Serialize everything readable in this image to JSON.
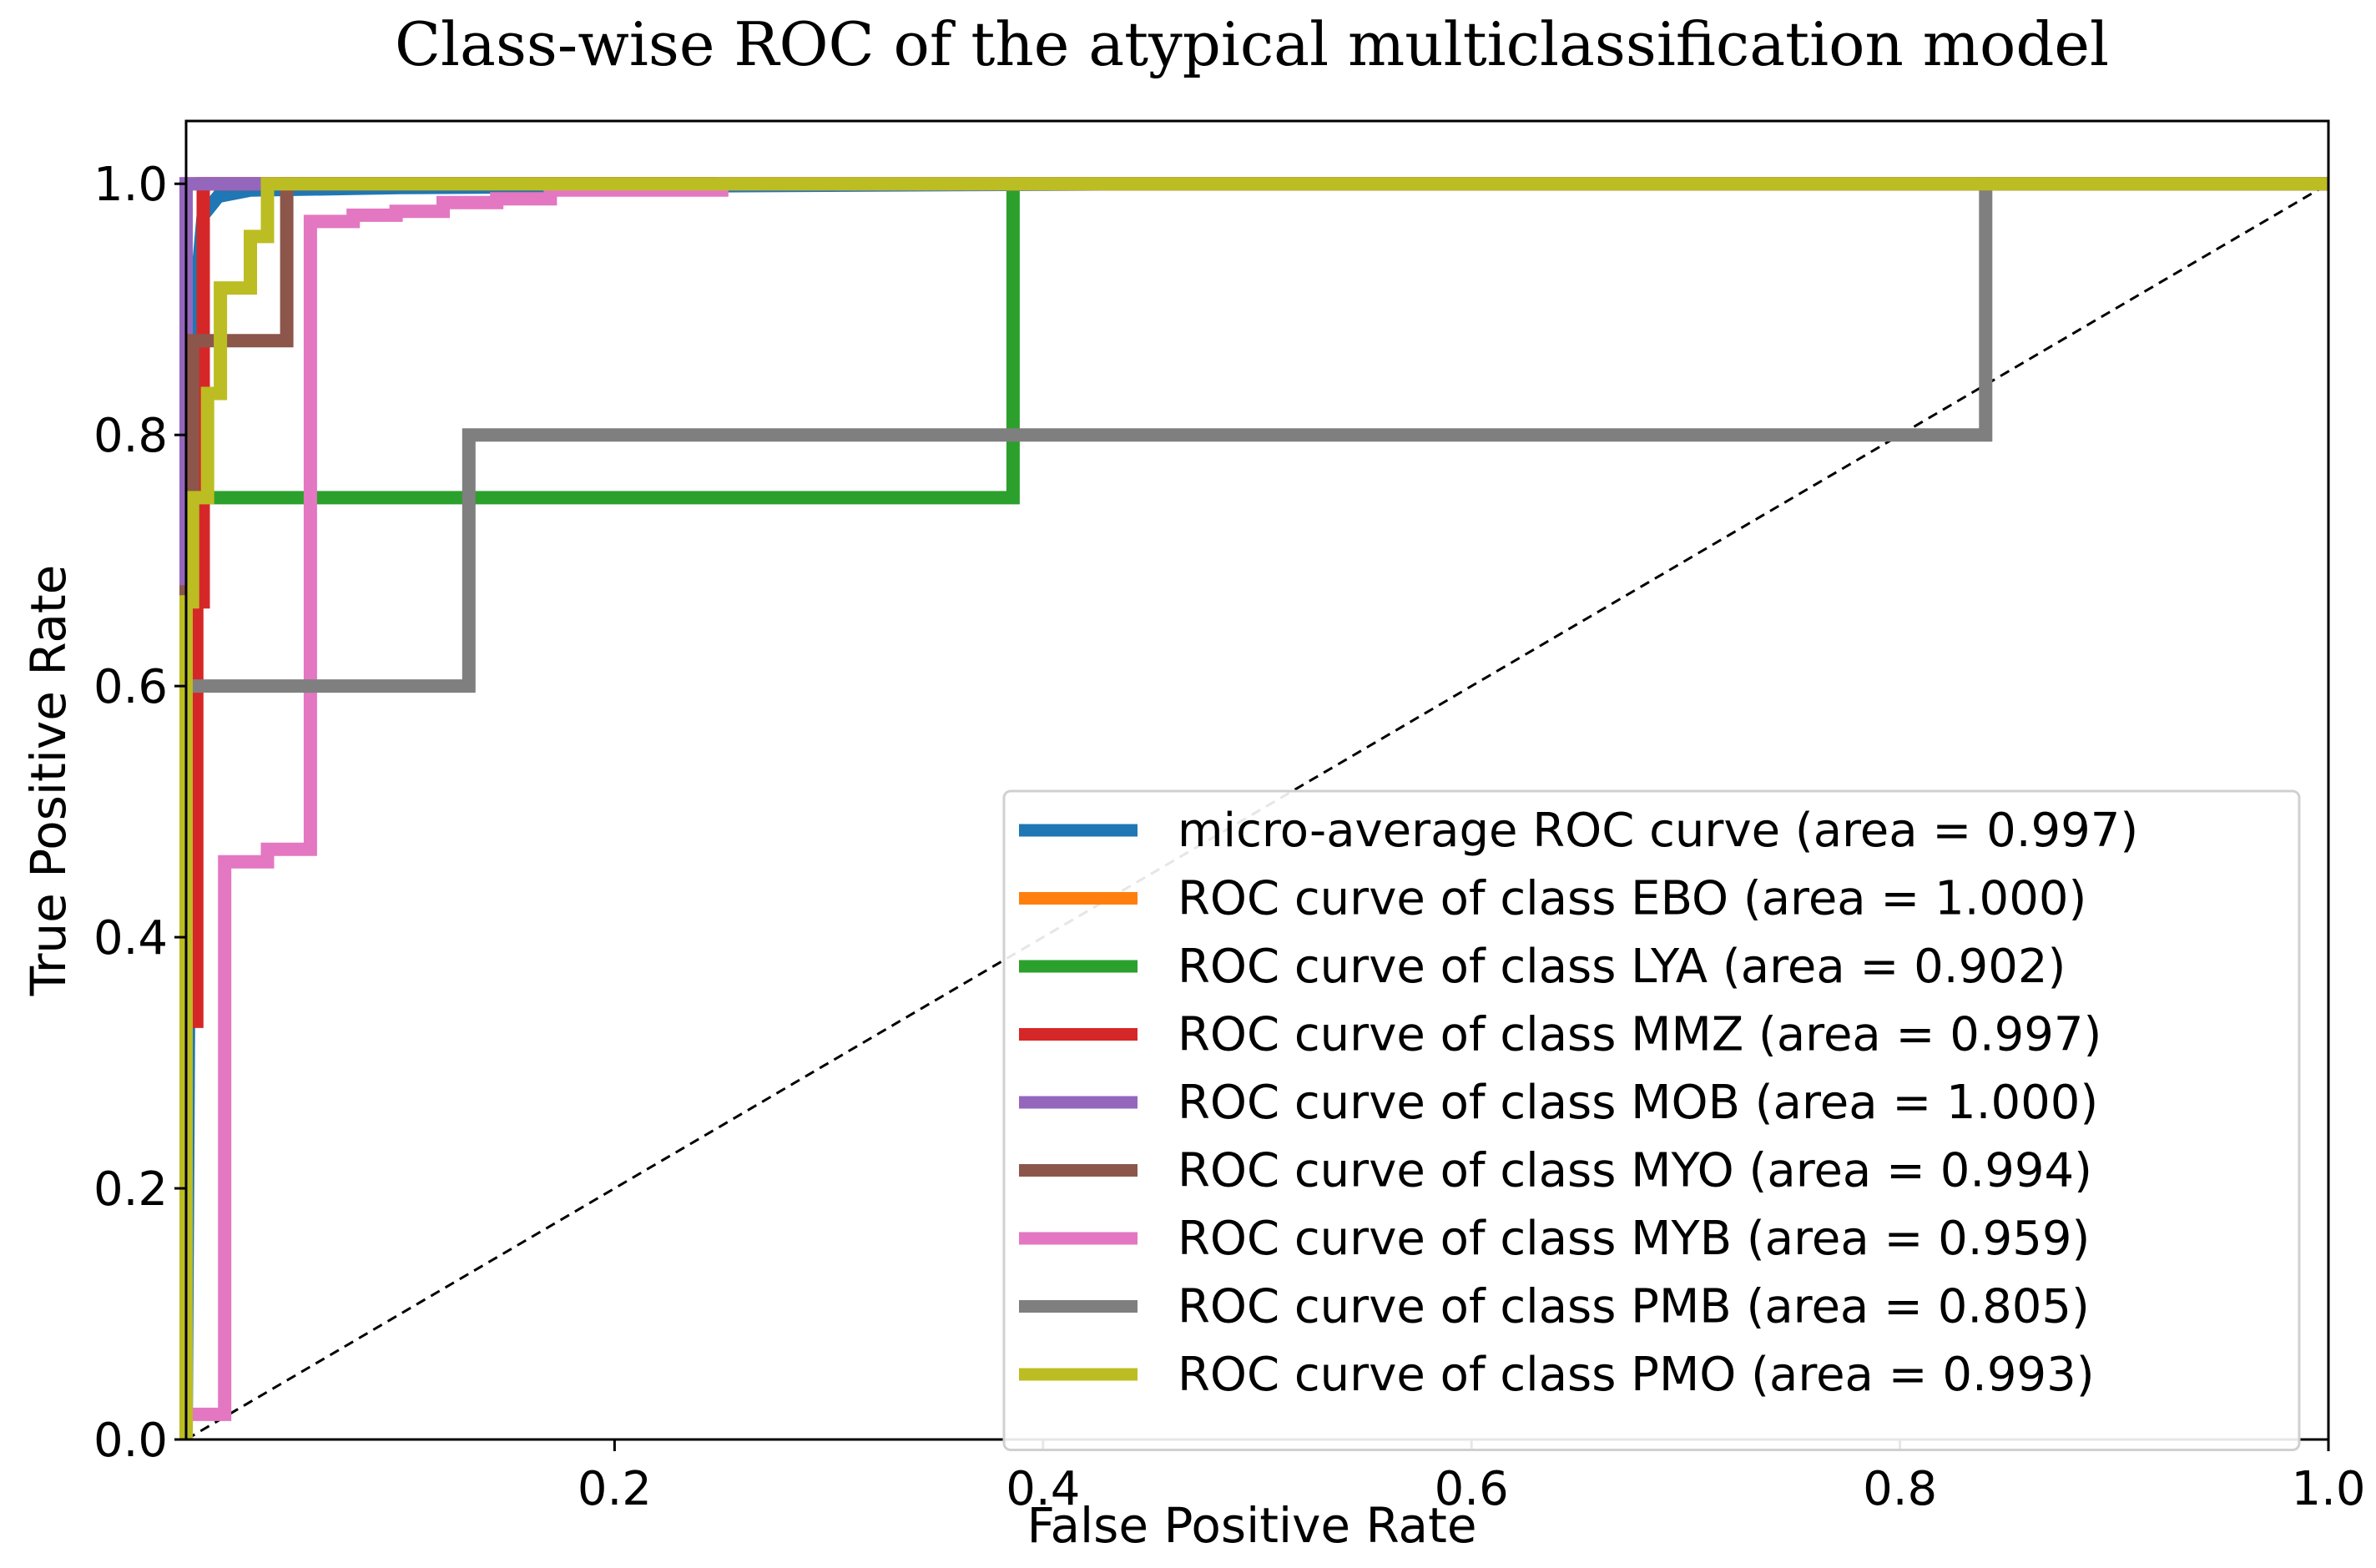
{
  "chart_data": {
    "type": "line",
    "title": "Class-wise ROC of the atypical multiclassification model",
    "xlabel": "False Positive Rate",
    "ylabel": "True Positive Rate",
    "xlim": [
      0.0,
      1.0
    ],
    "ylim": [
      0.0,
      1.05
    ],
    "x_ticks": [
      "0.2",
      "0.4",
      "0.6",
      "0.8",
      "1.0"
    ],
    "y_ticks": [
      "0.0",
      "0.2",
      "0.4",
      "0.6",
      "0.8",
      "1.0"
    ],
    "grid": false,
    "legend_position": "lower-right",
    "diagonal": {
      "x": [
        0,
        1
      ],
      "y": [
        0,
        1
      ],
      "color": "#000000",
      "style": "dashed"
    },
    "series": [
      {
        "name": "micro-average ROC curve (area = 0.997)",
        "color": "#1f77b4",
        "x": [
          0,
          0.003,
          0.008,
          0.015,
          0.03,
          0.1,
          0.2,
          0.45,
          1.0
        ],
        "y": [
          0,
          0.88,
          0.975,
          0.99,
          0.995,
          0.997,
          0.998,
          1.0,
          1.0
        ]
      },
      {
        "name": "ROC curve of class EBO (area = 1.000)",
        "color": "#ff7f0e",
        "x": [
          0,
          0,
          1.0
        ],
        "y": [
          0,
          1.0,
          1.0
        ]
      },
      {
        "name": "ROC curve of class LYA (area = 0.902)",
        "color": "#2ca02c",
        "x": [
          0,
          0,
          0.386,
          0.386,
          1.0
        ],
        "y": [
          0,
          0.75,
          0.75,
          1.0,
          1.0
        ]
      },
      {
        "name": "ROC curve of class MMZ (area = 0.997)",
        "color": "#d62728",
        "x": [
          0,
          0,
          0.005,
          0.005,
          0.008,
          0.008,
          1.0
        ],
        "y": [
          0,
          0.333,
          0.333,
          0.667,
          0.667,
          1.0,
          1.0
        ]
      },
      {
        "name": "ROC curve of class MOB (area = 1.000)",
        "color": "#9467bd",
        "x": [
          0,
          0,
          1.0
        ],
        "y": [
          0,
          1.0,
          1.0
        ]
      },
      {
        "name": "ROC curve of class MYO (area = 0.994)",
        "color": "#8c564b",
        "x": [
          0,
          0,
          0.003,
          0.003,
          0.047,
          0.047,
          1.0
        ],
        "y": [
          0,
          0.675,
          0.675,
          0.875,
          0.875,
          1.0,
          1.0
        ]
      },
      {
        "name": "ROC curve of class MYB (area = 0.959)",
        "color": "#e377c2",
        "x": [
          0,
          0,
          0.018,
          0.018,
          0.038,
          0.038,
          0.058,
          0.058,
          0.078,
          0.078,
          0.098,
          0.098,
          0.12,
          0.12,
          0.145,
          0.145,
          0.17,
          0.17,
          0.25,
          0.25,
          1.0
        ],
        "y": [
          0,
          0.02,
          0.02,
          0.46,
          0.46,
          0.47,
          0.47,
          0.97,
          0.97,
          0.975,
          0.975,
          0.978,
          0.978,
          0.985,
          0.985,
          0.988,
          0.988,
          0.995,
          0.995,
          1.0,
          1.0
        ]
      },
      {
        "name": "ROC curve of class PMB (area = 0.805)",
        "color": "#7f7f7f",
        "x": [
          0,
          0,
          0.132,
          0.132,
          0.84,
          0.84,
          1.0
        ],
        "y": [
          0,
          0.6,
          0.6,
          0.8,
          0.8,
          1.0,
          1.0
        ]
      },
      {
        "name": "ROC curve of class PMO (area = 0.993)",
        "color": "#bcbd22",
        "x": [
          0,
          0,
          0.003,
          0.003,
          0.01,
          0.01,
          0.016,
          0.016,
          0.03,
          0.03,
          0.038,
          0.038,
          1.0
        ],
        "y": [
          0,
          0.667,
          0.667,
          0.75,
          0.75,
          0.833,
          0.833,
          0.917,
          0.917,
          0.958,
          0.958,
          1.0,
          1.0
        ]
      }
    ]
  }
}
